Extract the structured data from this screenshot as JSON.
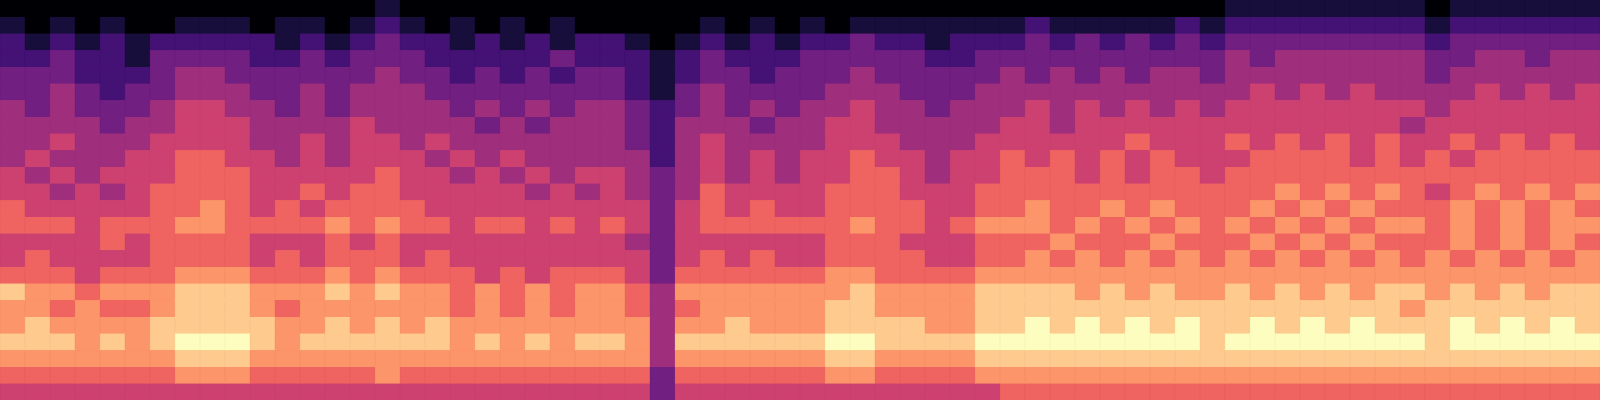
{
  "chart_data": {
    "type": "heatmap",
    "grid": false,
    "tick_labels": false,
    "cells": [
      [
        0,
        0,
        0,
        0,
        0,
        0,
        0,
        0,
        0,
        0,
        0,
        0,
        0,
        0,
        0,
        1,
        0,
        0,
        0,
        0,
        0,
        0,
        0,
        0,
        0,
        0,
        0,
        0,
        0,
        0,
        0,
        0,
        0,
        0,
        0,
        0,
        0,
        0,
        0,
        0,
        0,
        0,
        0,
        0,
        0,
        0,
        0,
        0,
        0,
        1,
        1,
        1,
        1,
        1,
        1,
        1,
        1,
        0,
        1,
        1,
        1,
        1,
        1,
        1
      ],
      [
        1,
        0,
        1,
        0,
        1,
        0,
        0,
        1,
        1,
        1,
        0,
        1,
        1,
        0,
        1,
        2,
        1,
        0,
        1,
        0,
        1,
        0,
        1,
        0,
        0,
        0,
        0,
        0,
        1,
        0,
        1,
        0,
        1,
        0,
        1,
        1,
        1,
        1,
        1,
        1,
        1,
        2,
        1,
        1,
        1,
        1,
        1,
        2,
        1,
        2,
        2,
        2,
        2,
        2,
        2,
        2,
        2,
        1,
        2,
        2,
        2,
        2,
        2,
        2
      ],
      [
        2,
        1,
        2,
        1,
        2,
        1,
        2,
        2,
        2,
        2,
        2,
        1,
        2,
        1,
        2,
        3,
        2,
        2,
        1,
        2,
        1,
        2,
        1,
        2,
        2,
        1,
        0,
        1,
        2,
        1,
        2,
        1,
        2,
        2,
        3,
        2,
        2,
        1,
        2,
        2,
        2,
        3,
        2,
        3,
        2,
        3,
        2,
        3,
        2,
        3,
        3,
        3,
        3,
        3,
        3,
        3,
        3,
        2,
        3,
        3,
        3,
        3,
        3,
        3
      ],
      [
        2,
        2,
        3,
        2,
        2,
        1,
        3,
        3,
        3,
        3,
        2,
        2,
        3,
        2,
        3,
        3,
        3,
        2,
        2,
        2,
        2,
        2,
        3,
        2,
        2,
        2,
        1,
        2,
        3,
        2,
        2,
        2,
        3,
        3,
        3,
        3,
        3,
        2,
        2,
        3,
        3,
        3,
        3,
        3,
        3,
        3,
        3,
        3,
        3,
        4,
        3,
        4,
        4,
        4,
        4,
        4,
        4,
        3,
        3,
        4,
        4,
        3,
        4,
        4
      ],
      [
        3,
        3,
        3,
        2,
        2,
        2,
        3,
        4,
        4,
        3,
        3,
        3,
        3,
        3,
        3,
        4,
        3,
        3,
        2,
        3,
        2,
        3,
        2,
        3,
        3,
        2,
        1,
        2,
        3,
        3,
        2,
        3,
        3,
        3,
        4,
        3,
        3,
        3,
        3,
        3,
        4,
        3,
        4,
        3,
        4,
        3,
        4,
        4,
        3,
        4,
        4,
        4,
        4,
        4,
        4,
        4,
        4,
        3,
        4,
        4,
        4,
        4,
        4,
        4
      ],
      [
        3,
        3,
        4,
        3,
        2,
        3,
        3,
        4,
        4,
        4,
        3,
        3,
        4,
        3,
        4,
        4,
        4,
        3,
        3,
        3,
        3,
        3,
        3,
        3,
        3,
        2,
        1,
        3,
        4,
        3,
        3,
        3,
        3,
        4,
        4,
        4,
        3,
        3,
        3,
        4,
        4,
        4,
        4,
        4,
        4,
        4,
        4,
        4,
        4,
        4,
        5,
        4,
        5,
        4,
        5,
        4,
        4,
        4,
        4,
        5,
        4,
        5,
        4,
        5
      ],
      [
        4,
        3,
        4,
        3,
        3,
        3,
        4,
        5,
        5,
        4,
        4,
        3,
        4,
        3,
        4,
        4,
        4,
        4,
        3,
        4,
        3,
        4,
        3,
        4,
        4,
        3,
        2,
        3,
        4,
        3,
        4,
        3,
        4,
        4,
        5,
        4,
        4,
        3,
        4,
        4,
        4,
        5,
        4,
        5,
        4,
        5,
        4,
        5,
        4,
        5,
        5,
        5,
        5,
        5,
        5,
        5,
        5,
        4,
        5,
        5,
        5,
        5,
        5,
        5
      ],
      [
        4,
        4,
        4,
        4,
        3,
        4,
        4,
        5,
        5,
        5,
        4,
        4,
        4,
        4,
        5,
        4,
        4,
        4,
        4,
        3,
        4,
        3,
        4,
        4,
        4,
        3,
        2,
        4,
        4,
        4,
        3,
        4,
        4,
        5,
        5,
        4,
        4,
        4,
        4,
        4,
        5,
        5,
        4,
        5,
        5,
        5,
        5,
        5,
        5,
        5,
        5,
        5,
        5,
        5,
        5,
        5,
        4,
        5,
        5,
        5,
        5,
        5,
        5,
        5
      ],
      [
        4,
        4,
        5,
        4,
        4,
        4,
        5,
        5,
        5,
        5,
        4,
        4,
        5,
        4,
        5,
        5,
        4,
        5,
        4,
        4,
        4,
        4,
        4,
        4,
        4,
        3,
        2,
        4,
        5,
        4,
        4,
        4,
        4,
        5,
        5,
        5,
        4,
        4,
        4,
        5,
        5,
        5,
        5,
        5,
        5,
        6,
        5,
        5,
        5,
        6,
        5,
        6,
        5,
        6,
        5,
        6,
        5,
        5,
        6,
        5,
        6,
        5,
        6,
        5
      ],
      [
        4,
        5,
        4,
        4,
        4,
        5,
        5,
        6,
        6,
        5,
        5,
        4,
        5,
        4,
        5,
        5,
        5,
        4,
        5,
        4,
        5,
        4,
        4,
        4,
        4,
        4,
        2,
        4,
        5,
        4,
        5,
        4,
        5,
        5,
        6,
        5,
        5,
        4,
        5,
        5,
        6,
        5,
        6,
        5,
        6,
        5,
        6,
        5,
        5,
        5,
        6,
        6,
        6,
        6,
        5,
        6,
        5,
        6,
        5,
        6,
        6,
        6,
        6,
        6
      ],
      [
        5,
        4,
        5,
        4,
        5,
        5,
        5,
        6,
        6,
        6,
        5,
        5,
        5,
        5,
        5,
        6,
        5,
        5,
        4,
        5,
        4,
        5,
        4,
        5,
        5,
        4,
        3,
        4,
        5,
        4,
        5,
        4,
        5,
        5,
        6,
        6,
        5,
        4,
        5,
        5,
        6,
        6,
        6,
        5,
        6,
        5,
        6,
        6,
        5,
        6,
        6,
        6,
        6,
        6,
        6,
        6,
        6,
        6,
        6,
        6,
        6,
        6,
        6,
        6
      ],
      [
        5,
        5,
        4,
        5,
        4,
        5,
        6,
        6,
        6,
        6,
        5,
        5,
        6,
        5,
        6,
        6,
        5,
        5,
        5,
        5,
        5,
        4,
        5,
        4,
        5,
        4,
        3,
        4,
        6,
        5,
        5,
        5,
        5,
        6,
        6,
        6,
        5,
        5,
        5,
        6,
        6,
        6,
        6,
        6,
        6,
        6,
        6,
        6,
        6,
        6,
        6,
        7,
        6,
        7,
        6,
        7,
        6,
        5,
        6,
        7,
        6,
        7,
        6,
        7
      ],
      [
        6,
        5,
        5,
        5,
        5,
        5,
        6,
        6,
        7,
        6,
        5,
        6,
        5,
        6,
        6,
        6,
        6,
        5,
        5,
        5,
        5,
        5,
        5,
        5,
        5,
        5,
        3,
        5,
        6,
        5,
        6,
        5,
        5,
        6,
        6,
        6,
        6,
        5,
        5,
        6,
        6,
        7,
        6,
        6,
        7,
        6,
        7,
        6,
        6,
        6,
        7,
        6,
        7,
        6,
        7,
        6,
        6,
        6,
        7,
        6,
        7,
        6,
        7,
        6
      ],
      [
        6,
        6,
        6,
        5,
        6,
        6,
        6,
        7,
        7,
        6,
        6,
        6,
        6,
        7,
        6,
        7,
        6,
        6,
        5,
        6,
        6,
        5,
        6,
        5,
        6,
        5,
        3,
        5,
        6,
        6,
        6,
        6,
        6,
        6,
        7,
        6,
        6,
        5,
        6,
        7,
        7,
        7,
        6,
        7,
        6,
        7,
        6,
        7,
        6,
        7,
        6,
        7,
        6,
        7,
        6,
        7,
        7,
        6,
        7,
        6,
        7,
        6,
        7,
        7
      ],
      [
        5,
        5,
        5,
        5,
        6,
        5,
        6,
        6,
        6,
        6,
        5,
        5,
        5,
        6,
        5,
        6,
        5,
        5,
        5,
        5,
        5,
        5,
        5,
        5,
        5,
        4,
        3,
        5,
        5,
        5,
        5,
        5,
        5,
        6,
        6,
        6,
        5,
        5,
        5,
        6,
        6,
        6,
        7,
        6,
        6,
        6,
        7,
        6,
        6,
        6,
        7,
        6,
        7,
        6,
        7,
        6,
        6,
        6,
        7,
        6,
        7,
        6,
        7,
        6
      ],
      [
        5,
        6,
        5,
        5,
        5,
        5,
        6,
        6,
        6,
        6,
        5,
        6,
        5,
        6,
        6,
        6,
        5,
        6,
        5,
        5,
        5,
        5,
        5,
        5,
        5,
        5,
        3,
        5,
        6,
        5,
        6,
        5,
        5,
        6,
        6,
        6,
        6,
        5,
        5,
        6,
        6,
        7,
        6,
        7,
        6,
        7,
        6,
        7,
        6,
        7,
        6,
        7,
        6,
        7,
        6,
        7,
        6,
        7,
        6,
        7,
        6,
        7,
        6,
        7
      ],
      [
        6,
        6,
        6,
        5,
        6,
        6,
        6,
        7,
        7,
        7,
        6,
        6,
        6,
        7,
        6,
        7,
        6,
        6,
        6,
        5,
        6,
        5,
        6,
        6,
        6,
        5,
        3,
        6,
        6,
        6,
        6,
        6,
        6,
        7,
        7,
        6,
        6,
        6,
        6,
        7,
        7,
        7,
        7,
        7,
        7,
        7,
        7,
        7,
        7,
        7,
        7,
        7,
        7,
        7,
        7,
        7,
        7,
        7,
        7,
        7,
        7,
        7,
        7,
        7
      ],
      [
        8,
        7,
        7,
        6,
        7,
        7,
        7,
        8,
        8,
        8,
        7,
        7,
        7,
        8,
        7,
        8,
        7,
        7,
        6,
        7,
        6,
        7,
        6,
        7,
        7,
        6,
        4,
        7,
        7,
        7,
        7,
        7,
        7,
        7,
        8,
        7,
        7,
        7,
        7,
        8,
        8,
        8,
        8,
        7,
        8,
        7,
        8,
        7,
        7,
        8,
        7,
        8,
        7,
        8,
        7,
        8,
        8,
        7,
        8,
        7,
        8,
        7,
        8,
        8
      ],
      [
        7,
        7,
        6,
        7,
        6,
        6,
        7,
        8,
        8,
        8,
        7,
        6,
        7,
        7,
        7,
        7,
        7,
        7,
        6,
        7,
        6,
        7,
        6,
        7,
        7,
        6,
        4,
        6,
        7,
        7,
        7,
        7,
        7,
        8,
        8,
        7,
        7,
        7,
        7,
        8,
        8,
        8,
        8,
        8,
        8,
        8,
        8,
        8,
        8,
        8,
        8,
        8,
        8,
        8,
        8,
        8,
        7,
        8,
        8,
        8,
        8,
        8,
        8,
        8
      ],
      [
        7,
        8,
        7,
        7,
        7,
        7,
        8,
        8,
        8,
        8,
        8,
        7,
        7,
        8,
        7,
        8,
        7,
        8,
        7,
        7,
        7,
        7,
        7,
        7,
        7,
        7,
        4,
        7,
        7,
        8,
        7,
        7,
        7,
        8,
        8,
        8,
        8,
        7,
        7,
        8,
        8,
        9,
        8,
        9,
        8,
        9,
        8,
        9,
        8,
        8,
        9,
        8,
        9,
        8,
        9,
        8,
        8,
        8,
        9,
        8,
        9,
        8,
        9,
        8
      ],
      [
        8,
        8,
        8,
        7,
        8,
        7,
        8,
        9,
        9,
        9,
        8,
        7,
        8,
        8,
        8,
        8,
        8,
        8,
        7,
        8,
        7,
        8,
        7,
        8,
        8,
        7,
        4,
        8,
        8,
        8,
        8,
        8,
        8,
        9,
        9,
        8,
        8,
        8,
        8,
        9,
        9,
        9,
        9,
        9,
        9,
        9,
        9,
        9,
        8,
        9,
        9,
        9,
        9,
        9,
        9,
        9,
        9,
        8,
        9,
        9,
        9,
        9,
        9,
        9
      ],
      [
        7,
        7,
        7,
        7,
        7,
        7,
        7,
        8,
        8,
        8,
        7,
        7,
        7,
        7,
        7,
        7,
        7,
        7,
        7,
        7,
        7,
        7,
        7,
        7,
        7,
        7,
        4,
        7,
        7,
        7,
        7,
        7,
        7,
        8,
        8,
        7,
        7,
        7,
        7,
        8,
        8,
        8,
        8,
        8,
        8,
        8,
        8,
        8,
        8,
        8,
        8,
        8,
        8,
        8,
        8,
        8,
        8,
        8,
        8,
        8,
        8,
        8,
        8,
        8
      ],
      [
        6,
        6,
        6,
        6,
        6,
        6,
        6,
        7,
        7,
        7,
        6,
        6,
        6,
        6,
        6,
        7,
        6,
        6,
        6,
        6,
        6,
        6,
        6,
        6,
        6,
        6,
        3,
        6,
        6,
        6,
        6,
        6,
        6,
        7,
        7,
        6,
        6,
        6,
        6,
        7,
        7,
        7,
        7,
        7,
        7,
        7,
        7,
        7,
        7,
        7,
        7,
        7,
        7,
        7,
        7,
        7,
        7,
        7,
        7,
        7,
        7,
        7,
        7,
        7
      ],
      [
        5,
        5,
        5,
        5,
        5,
        5,
        5,
        5,
        5,
        5,
        5,
        5,
        5,
        5,
        5,
        5,
        5,
        5,
        5,
        5,
        5,
        5,
        5,
        5,
        5,
        5,
        3,
        5,
        5,
        5,
        5,
        5,
        5,
        5,
        5,
        5,
        5,
        5,
        5,
        5,
        6,
        6,
        6,
        6,
        6,
        6,
        6,
        6,
        6,
        6,
        6,
        6,
        6,
        6,
        6,
        6,
        6,
        6,
        6,
        6,
        6,
        6,
        6,
        6
      ]
    ]
  }
}
